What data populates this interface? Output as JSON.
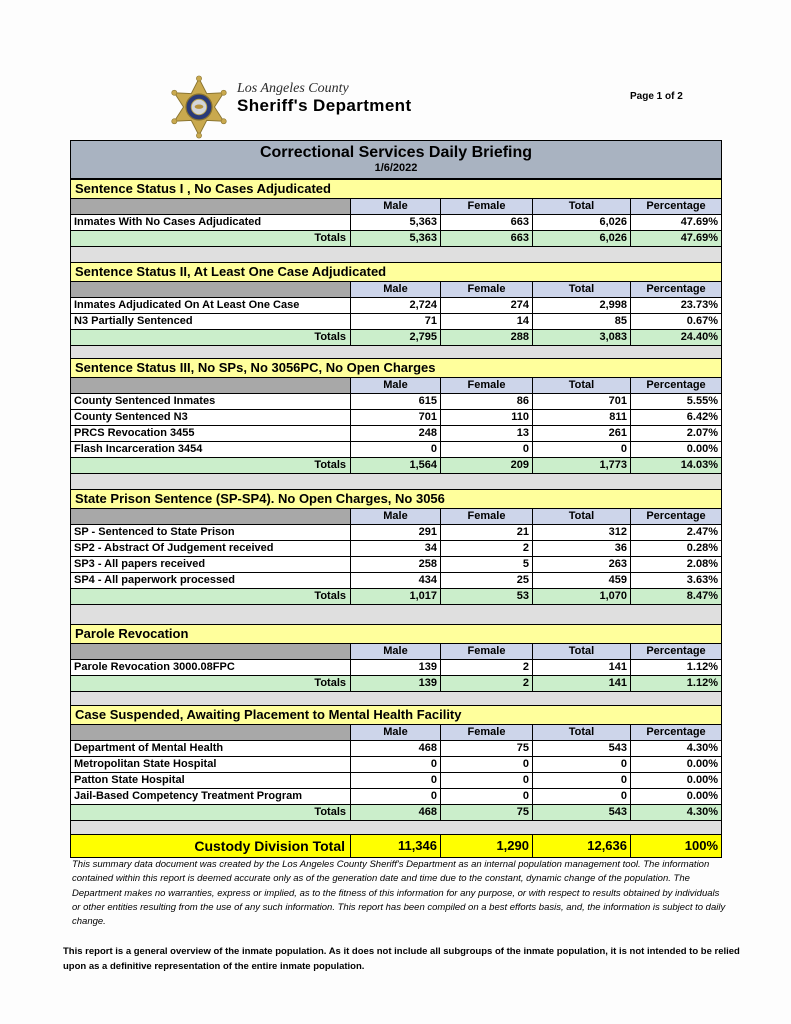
{
  "page": {
    "label": "Page 1 of 2"
  },
  "logo": {
    "org_line1": "Los Angeles County",
    "org_line2": "Sheriff's Department"
  },
  "title": {
    "heading": "Correctional Services Daily Briefing",
    "date": "1/6/2022"
  },
  "columns": [
    "Male",
    "Female",
    "Total",
    "Percentage"
  ],
  "totals_label": "Totals",
  "sections": [
    {
      "title": "Sentence Status I , No Cases Adjudicated",
      "rows": [
        {
          "label": "Inmates With No Cases Adjudicated",
          "male": "5,363",
          "female": "663",
          "total": "6,026",
          "pct": "47.69%"
        }
      ],
      "totals": {
        "male": "5,363",
        "female": "663",
        "total": "6,026",
        "pct": "47.69%"
      },
      "gap_after": 15
    },
    {
      "title": "Sentence Status II, At Least One Case Adjudicated",
      "rows": [
        {
          "label": "Inmates Adjudicated On At Least One Case",
          "male": "2,724",
          "female": "274",
          "total": "2,998",
          "pct": "23.73%"
        },
        {
          "label": "N3 Partially Sentenced",
          "male": "71",
          "female": "14",
          "total": "85",
          "pct": "0.67%"
        }
      ],
      "totals": {
        "male": "2,795",
        "female": "288",
        "total": "3,083",
        "pct": "24.40%"
      },
      "gap_after": 12
    },
    {
      "title": "Sentence Status III, No SPs, No 3056PC, No Open Charges",
      "rows": [
        {
          "label": "County Sentenced Inmates",
          "male": "615",
          "female": "86",
          "total": "701",
          "pct": "5.55%"
        },
        {
          "label": "County Sentenced N3",
          "male": "701",
          "female": "110",
          "total": "811",
          "pct": "6.42%"
        },
        {
          "label": "PRCS Revocation 3455",
          "male": "248",
          "female": "13",
          "total": "261",
          "pct": "2.07%"
        },
        {
          "label": "Flash Incarceration 3454",
          "male": "0",
          "female": "0",
          "total": "0",
          "pct": "0.00%"
        }
      ],
      "totals": {
        "male": "1,564",
        "female": "209",
        "total": "1,773",
        "pct": "14.03%"
      },
      "gap_after": 15
    },
    {
      "title": "State Prison Sentence (SP-SP4). No Open Charges, No 3056",
      "rows": [
        {
          "label": "SP - Sentenced to State Prison",
          "male": "291",
          "female": "21",
          "total": "312",
          "pct": "2.47%"
        },
        {
          "label": "SP2 - Abstract Of Judgement received",
          "male": "34",
          "female": "2",
          "total": "36",
          "pct": "0.28%"
        },
        {
          "label": "SP3 - All papers received",
          "male": "258",
          "female": "5",
          "total": "263",
          "pct": "2.08%"
        },
        {
          "label": "SP4 - All paperwork processed",
          "male": "434",
          "female": "25",
          "total": "459",
          "pct": "3.63%"
        }
      ],
      "totals": {
        "male": "1,017",
        "female": "53",
        "total": "1,070",
        "pct": "8.47%"
      },
      "gap_after": 19
    },
    {
      "title": "Parole Revocation",
      "rows": [
        {
          "label": "Parole Revocation 3000.08FPC",
          "male": "139",
          "female": "2",
          "total": "141",
          "pct": "1.12%"
        }
      ],
      "totals": {
        "male": "139",
        "female": "2",
        "total": "141",
        "pct": "1.12%"
      },
      "gap_after": 13
    },
    {
      "title": "Case Suspended, Awaiting Placement to Mental Health Facility",
      "rows": [
        {
          "label": "Department of Mental Health",
          "male": "468",
          "female": "75",
          "total": "543",
          "pct": "4.30%"
        },
        {
          "label": "Metropolitan State Hospital",
          "male": "0",
          "female": "0",
          "total": "0",
          "pct": "0.00%"
        },
        {
          "label": "Patton State Hospital",
          "male": "0",
          "female": "0",
          "total": "0",
          "pct": "0.00%"
        },
        {
          "label": "Jail-Based Competency Treatment Program",
          "male": "0",
          "female": "0",
          "total": "0",
          "pct": "0.00%"
        }
      ],
      "totals": {
        "male": "468",
        "female": "75",
        "total": "543",
        "pct": "4.30%"
      },
      "gap_after": 13
    }
  ],
  "grand_total": {
    "label": "Custody Division Total",
    "male": "11,346",
    "female": "1,290",
    "total": "12,636",
    "pct": "100%"
  },
  "footnotes": {
    "disclaimer": "This summary data document was created by the Los Angeles County Sheriff's Department as an internal population management tool.  The information contained within this report is deemed accurate only as of the generation date and time due to the constant, dynamic change of the population.  The Department makes no warranties, express or implied, as to the fitness of this information for any purpose, or with respect to results obtained by individuals or other entities resulting from the use of any such information.  This report has been compiled on a best efforts basis, and, the information is subject to daily change.",
    "overview": "This report is a general overview of the inmate population.  As it does not include all subgroups of the inmate population, it is not intended to be relied upon as a definitive representation of the entire inmate population."
  },
  "colors": {
    "title_bar": "#a9b3c1",
    "section_header": "#ffff9c",
    "column_header": "#cdd5ea",
    "row_label_header": "#a8a8a8",
    "totals_row": "#cbeecb",
    "grand_total_row": "#ffff00",
    "gap_fill": "#dfdfdf",
    "badge_gold": "#c9a94e",
    "badge_navy": "#2a3a78"
  }
}
